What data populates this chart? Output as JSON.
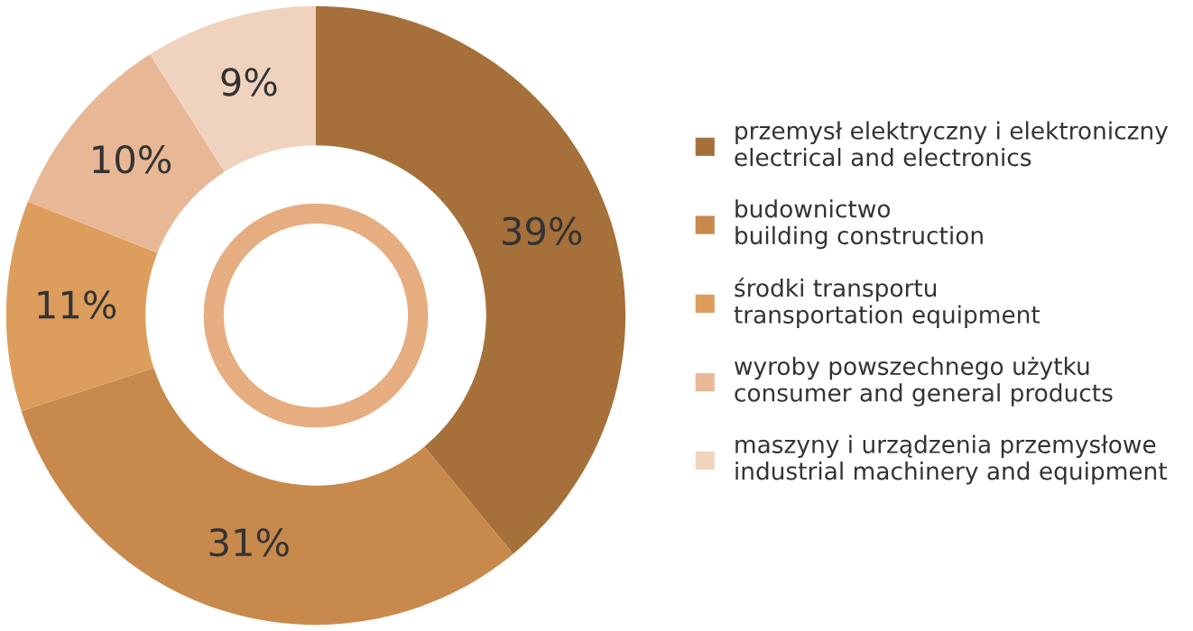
{
  "chart_data": {
    "type": "donut",
    "categories": [
      "przemysł elektryczny i elektroniczny\nelectrical and electronics",
      "budownictwo\nbuilding construction",
      "środki transportu\ntransportation equipment",
      "wyroby powszechnego użytku\nconsumer and general products",
      "maszyny i urządzenia przemysłowe\nindustrial machinery and equipment"
    ],
    "values": [
      39,
      31,
      11,
      10,
      9
    ],
    "colors": [
      "#a6703a",
      "#c8894c",
      "#dd9d5c",
      "#e8b896",
      "#f0d3bf"
    ],
    "value_labels": [
      "39%",
      "31%",
      "11%",
      "10%",
      "9%"
    ],
    "legend": "right"
  }
}
